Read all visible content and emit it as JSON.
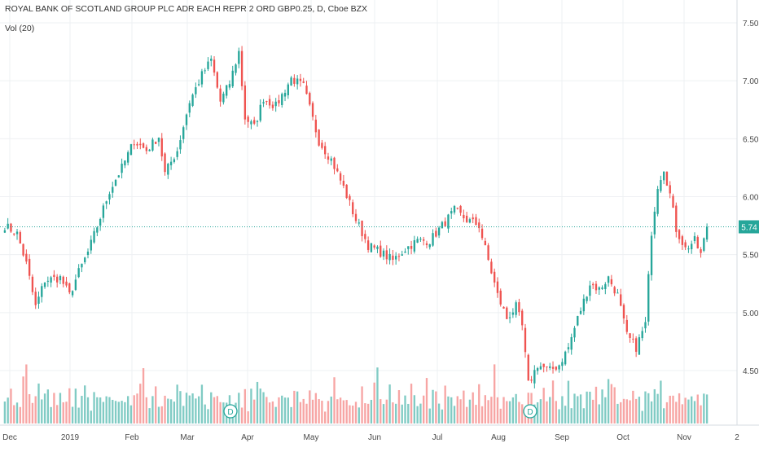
{
  "header": {
    "title": "ROYAL BANK OF SCOTLAND GROUP PLC ADR EACH REPR 2 ORD GBP0.25, D, Cboe BZX",
    "volume_label": "Vol (20)"
  },
  "colors": {
    "up": "#26a69a",
    "down": "#ef5350",
    "volume_up": "#80cbc4",
    "volume_down": "#f7a5a4",
    "grid": "#eef0f3",
    "axis_text": "#4a4a4a",
    "last_price_bg": "#26a69a",
    "marker_border": "#26a69a"
  },
  "chart_data": {
    "type": "candlestick",
    "title": "ROYAL BANK OF SCOTLAND GROUP PLC ADR EACH REPR 2 ORD GBP0.25, D, Cboe BZX",
    "y_ticks": [
      "7.50",
      "7.00",
      "6.50",
      "6.00",
      "5.50",
      "5.00",
      "4.50"
    ],
    "ylim": [
      4.0,
      7.55
    ],
    "x_ticks": [
      "Dec",
      "2019",
      "Feb",
      "Mar",
      "Apr",
      "May",
      "Jun",
      "Jul",
      "Aug",
      "Sep",
      "Oct",
      "Nov",
      "2"
    ],
    "last_price": "5.74",
    "grid": true,
    "dividend_markers": [
      {
        "label": "D",
        "near": "Mar"
      },
      {
        "label": "D",
        "near": "Aug"
      }
    ],
    "waypoints": [
      [
        0,
        5.75
      ],
      [
        4,
        5.68
      ],
      [
        7,
        5.42
      ],
      [
        10,
        5.05
      ],
      [
        13,
        5.28
      ],
      [
        18,
        5.3
      ],
      [
        21,
        5.15
      ],
      [
        24,
        5.35
      ],
      [
        27,
        5.52
      ],
      [
        31,
        5.82
      ],
      [
        34,
        6.05
      ],
      [
        38,
        6.25
      ],
      [
        42,
        6.48
      ],
      [
        46,
        6.4
      ],
      [
        50,
        6.52
      ],
      [
        52,
        6.2
      ],
      [
        56,
        6.4
      ],
      [
        60,
        6.82
      ],
      [
        64,
        7.05
      ],
      [
        67,
        7.18
      ],
      [
        70,
        6.82
      ],
      [
        73,
        6.98
      ],
      [
        76,
        7.25
      ],
      [
        78,
        6.68
      ],
      [
        81,
        6.6
      ],
      [
        84,
        6.85
      ],
      [
        88,
        6.78
      ],
      [
        93,
        7.02
      ],
      [
        97,
        6.95
      ],
      [
        102,
        6.48
      ],
      [
        106,
        6.32
      ],
      [
        110,
        6.08
      ],
      [
        114,
        5.8
      ],
      [
        118,
        5.58
      ],
      [
        122,
        5.52
      ],
      [
        126,
        5.45
      ],
      [
        130,
        5.55
      ],
      [
        134,
        5.62
      ],
      [
        138,
        5.62
      ],
      [
        142,
        5.75
      ],
      [
        146,
        5.88
      ],
      [
        150,
        5.8
      ],
      [
        154,
        5.75
      ],
      [
        157,
        5.45
      ],
      [
        160,
        5.15
      ],
      [
        163,
        4.95
      ],
      [
        166,
        5.05
      ],
      [
        168,
        4.88
      ],
      [
        170,
        4.38
      ],
      [
        173,
        4.55
      ],
      [
        177,
        4.5
      ],
      [
        180,
        4.55
      ],
      [
        183,
        4.7
      ],
      [
        186,
        4.95
      ],
      [
        190,
        5.25
      ],
      [
        193,
        5.2
      ],
      [
        196,
        5.3
      ],
      [
        199,
        5.15
      ],
      [
        202,
        4.8
      ],
      [
        205,
        4.7
      ],
      [
        208,
        4.9
      ],
      [
        210,
        5.7
      ],
      [
        212,
        6.1
      ],
      [
        214,
        6.25
      ],
      [
        216,
        6.02
      ],
      [
        218,
        5.72
      ],
      [
        221,
        5.55
      ],
      [
        224,
        5.62
      ],
      [
        226,
        5.5
      ],
      [
        228,
        5.74
      ]
    ],
    "volume_pattern": [
      0.28,
      0.22,
      0.35,
      0.18,
      0.3,
      0.25,
      0.4,
      0.52,
      0.3,
      0.22,
      0.27,
      0.33,
      0.2,
      0.26,
      0.31,
      0.23,
      0.29,
      0.19,
      0.34,
      0.27,
      0.21,
      0.3,
      0.25,
      0.45,
      0.22,
      0.28,
      0.36,
      0.24,
      0.18,
      0.32,
      0.26,
      0.38,
      0.21,
      0.29,
      0.24,
      0.31,
      0.19,
      0.27
    ]
  }
}
